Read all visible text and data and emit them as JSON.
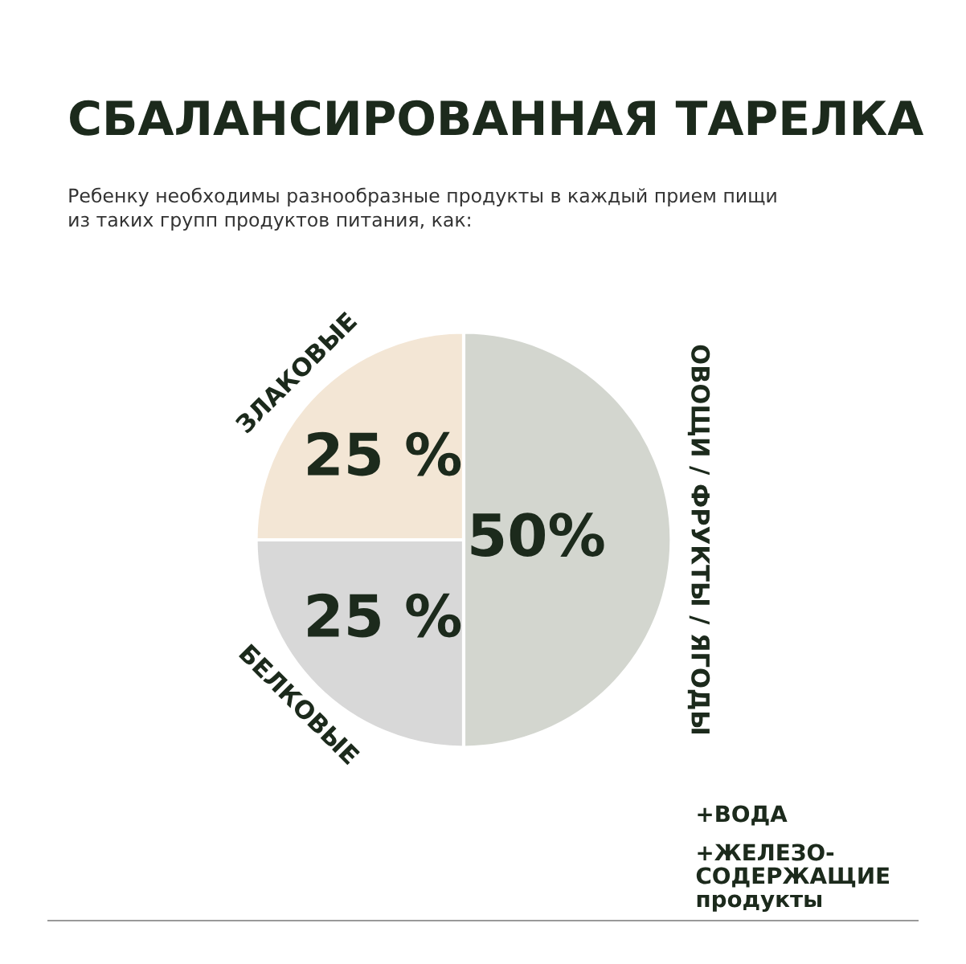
{
  "chart_data": {
    "type": "pie",
    "title": "СБАЛАНСИРОВАННАЯ ТАРЕЛКА",
    "subtitle": "Ребенку необходимы разнообразные продукты в каждый прием пищи\nиз таких групп продуктов питания, как:",
    "categories": [
      "ОВОЩИ / ФРУКТЫ / ЯГОДЫ",
      "БЕЛКОВЫЕ",
      "ЗЛАКОВЫЕ"
    ],
    "values": [
      50,
      25,
      25
    ],
    "colors": [
      "#d3d6cf",
      "#d8d8d8",
      "#f3e6d5"
    ],
    "value_labels": [
      "50%",
      "25 %",
      "25 %"
    ],
    "annotations": [
      "+ВОДА",
      "+ЖЕЛЕЗО-\nСОДЕРЖАЩИЕ\nпродукты"
    ],
    "legend": false
  }
}
